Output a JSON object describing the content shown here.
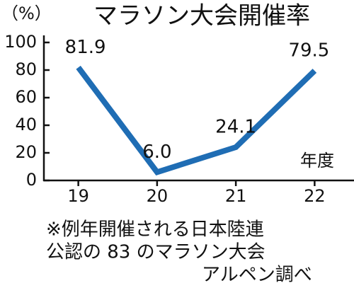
{
  "chart_data": {
    "type": "line",
    "title": "マラソン大会開催率",
    "y_unit": "（%）",
    "x_label": "年度",
    "categories": [
      "19",
      "20",
      "21",
      "22"
    ],
    "values": [
      81.9,
      6.0,
      24.1,
      79.5
    ],
    "value_labels": [
      "81.9",
      "6.0",
      "24.1",
      "79.5"
    ],
    "color": "#1f6db4",
    "ylim": [
      0,
      100
    ],
    "yticks": [
      0,
      20,
      40,
      60,
      80,
      100
    ],
    "grid": false,
    "notes": [
      "※例年開催される日本陸連",
      "公認の 83 のマラソン大会",
      "アルペン調べ"
    ]
  }
}
